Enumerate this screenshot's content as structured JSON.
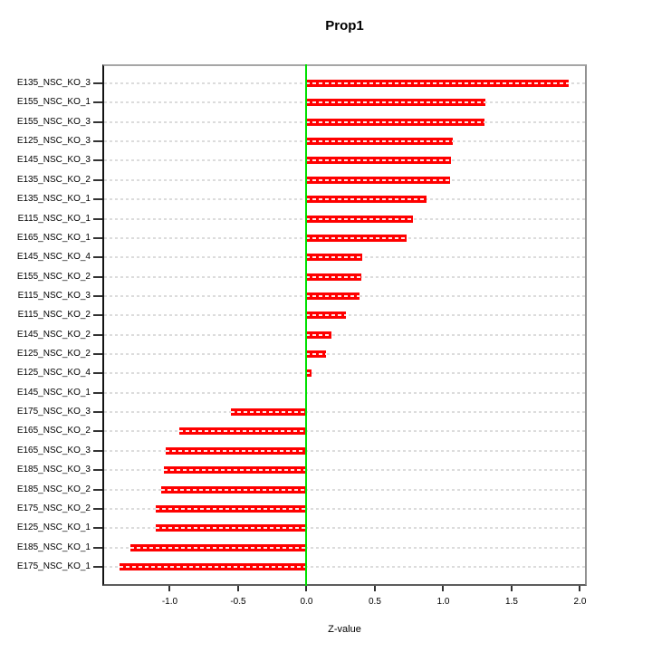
{
  "window": {
    "background": "#ffffff"
  },
  "chart_data": {
    "type": "bar",
    "orientation": "horizontal",
    "title": "Prop1",
    "xlabel": "Z-value",
    "ylabel": "",
    "categories": [
      "E135_NSC_KO_3",
      "E155_NSC_KO_1",
      "E155_NSC_KO_3",
      "E125_NSC_KO_3",
      "E145_NSC_KO_3",
      "E135_NSC_KO_2",
      "E135_NSC_KO_1",
      "E115_NSC_KO_1",
      "E165_NSC_KO_1",
      "E145_NSC_KO_4",
      "E155_NSC_KO_2",
      "E115_NSC_KO_3",
      "E115_NSC_KO_2",
      "E145_NSC_KO_2",
      "E125_NSC_KO_2",
      "E125_NSC_KO_4",
      "E145_NSC_KO_1",
      "E175_NSC_KO_3",
      "E165_NSC_KO_2",
      "E165_NSC_KO_3",
      "E185_NSC_KO_3",
      "E185_NSC_KO_2",
      "E175_NSC_KO_2",
      "E125_NSC_KO_1",
      "E185_NSC_KO_1",
      "E175_NSC_KO_1"
    ],
    "values": [
      1.92,
      1.31,
      1.3,
      1.07,
      1.06,
      1.05,
      0.88,
      0.78,
      0.73,
      0.41,
      0.4,
      0.39,
      0.29,
      0.18,
      0.14,
      0.04,
      0.005,
      -0.55,
      -0.93,
      -1.03,
      -1.04,
      -1.06,
      -1.1,
      -1.1,
      -1.29,
      -1.37
    ],
    "xlim": [
      -1.493,
      2.05
    ],
    "x_tick_values": [
      -1.0,
      -0.5,
      0.0,
      0.5,
      1.0,
      1.5,
      2.0
    ],
    "x_tick_labels": [
      "-1.0",
      "-0.5",
      "0.0",
      "0.5",
      "1.0",
      "1.5",
      "2.0"
    ],
    "grid": true,
    "legend": "none",
    "bar_color": "#ff0000",
    "zero_line_color": "#00e000",
    "gridline_color": "#dcdcdc"
  }
}
